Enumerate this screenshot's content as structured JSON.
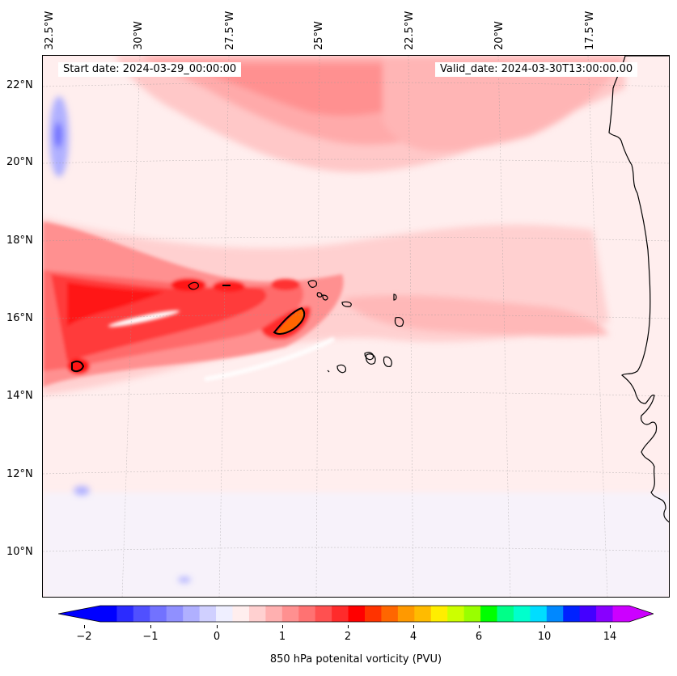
{
  "header": {
    "start_date": "Start date: 2024-03-29_00:00:00",
    "valid_date": "Valid_date: 2024-03-30T13:00:00.00"
  },
  "axes": {
    "lon_labels": [
      "32.5°W",
      "30°W",
      "27.5°W",
      "25°W",
      "22.5°W",
      "20°W",
      "17.5°W"
    ],
    "lat_labels": [
      "22°N",
      "20°N",
      "18°N",
      "16°N",
      "14°N",
      "12°N",
      "10°N"
    ]
  },
  "colorbar": {
    "label": "850 hPa potenital vorticity (PVU)",
    "ticks": [
      "−2",
      "−1",
      "0",
      "1",
      "2",
      "4",
      "6",
      "10",
      "14"
    ],
    "colors": [
      "#0000ff",
      "#2b2bff",
      "#5050ff",
      "#7272ff",
      "#9090ff",
      "#b0b0ff",
      "#d0d0ff",
      "#efefff",
      "#ffeeee",
      "#ffd0d0",
      "#ffb0b0",
      "#ff9090",
      "#ff7272",
      "#ff5050",
      "#ff2b2b",
      "#ff0000",
      "#ff3300",
      "#ff6600",
      "#ff9900",
      "#ffbb00",
      "#ffee00",
      "#ccff00",
      "#99ff00",
      "#00ff00",
      "#00ff88",
      "#00ffcc",
      "#00ddff",
      "#0088ff",
      "#0022ff",
      "#4400ff",
      "#8800ff",
      "#cc00ff"
    ],
    "extend_min_color": "#0000ff",
    "extend_max_color": "#cc00ff"
  },
  "map": {
    "background_color": "#fff0f0",
    "coastline_color": "#000000"
  }
}
